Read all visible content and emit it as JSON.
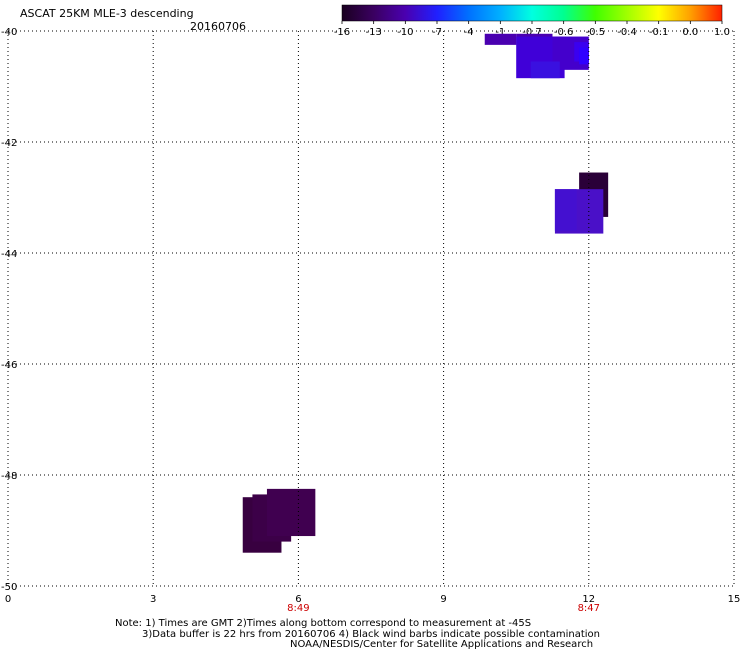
{
  "chart_data": {
    "type": "heatmap",
    "title": "ASCAT 25KM MLE-3 descending",
    "date": "20160706",
    "xlim": [
      0,
      15
    ],
    "ylim": [
      -50,
      -40
    ],
    "x_ticks": [
      0,
      3,
      6,
      9,
      12,
      15
    ],
    "y_ticks": [
      -40,
      -42,
      -44,
      -46,
      -48,
      -50
    ],
    "y_tick_labels": [
      "-40",
      "-42",
      "-44",
      "-46",
      "-48",
      "-50"
    ],
    "grid": true,
    "time_labels": [
      {
        "x": 6,
        "label": "8:49"
      },
      {
        "x": 12,
        "label": "8:47"
      }
    ],
    "colorbar": {
      "labels": [
        "-16",
        "-13",
        "-10",
        "-7",
        "-4",
        "-1",
        "-0.7",
        "-0.6",
        "-0.5",
        "-0.4",
        "-0.1",
        "0.0",
        "1.0"
      ],
      "colors": [
        "#1a0020",
        "#3a0060",
        "#4a00b0",
        "#2020ff",
        "#0070ff",
        "#00b0ff",
        "#00ffe0",
        "#00ff90",
        "#40ff00",
        "#a0ff00",
        "#ffff00",
        "#ffa000",
        "#ff2000"
      ]
    },
    "cells": [
      {
        "x0": 9.85,
        "x1": 10.5,
        "y0": -40.25,
        "y1": -40.05,
        "color": "#4a00b0"
      },
      {
        "x0": 10.5,
        "x1": 11.25,
        "y0": -40.25,
        "y1": -40.05,
        "color": "#4a00b0"
      },
      {
        "x0": 10.5,
        "x1": 11.5,
        "y0": -40.85,
        "y1": -40.1,
        "color": "#4000d8"
      },
      {
        "x0": 11.25,
        "x1": 12.0,
        "y0": -40.7,
        "y1": -40.1,
        "color": "#4400cc"
      },
      {
        "x0": 11.7,
        "x1": 12.0,
        "y0": -40.55,
        "y1": -40.2,
        "color": "#3a00f0"
      },
      {
        "x0": 11.8,
        "x1": 12.0,
        "y0": -40.6,
        "y1": -40.3,
        "color": "#3000ff"
      },
      {
        "x0": 10.8,
        "x1": 11.4,
        "y0": -40.85,
        "y1": -40.55,
        "color": "#3a10e0"
      },
      {
        "x0": 11.8,
        "x1": 12.4,
        "y0": -42.55,
        "y1": -43.35,
        "color": "#2a0038"
      },
      {
        "x0": 11.3,
        "x1": 12.3,
        "y0": -42.85,
        "y1": -43.65,
        "color": "#4a10c8"
      },
      {
        "x0": 11.3,
        "x1": 11.75,
        "y0": -42.85,
        "y1": -43.6,
        "color": "#4410d0"
      },
      {
        "x0": 4.85,
        "x1": 5.65,
        "y0": -48.4,
        "y1": -49.4,
        "color": "#380040"
      },
      {
        "x0": 5.05,
        "x1": 5.85,
        "y0": -48.35,
        "y1": -49.2,
        "color": "#3c0048"
      },
      {
        "x0": 5.35,
        "x1": 6.35,
        "y0": -48.25,
        "y1": -49.1,
        "color": "#400050"
      }
    ],
    "notes": [
      "Note: 1) Times are GMT 2)Times along bottom correspond to measurement at -45S",
      "3)Data buffer is 22 hrs from 20160706 4) Black wind barbs indicate possible contamination",
      "NOAA/NESDIS/Center for Satellite Applications and Research"
    ]
  }
}
